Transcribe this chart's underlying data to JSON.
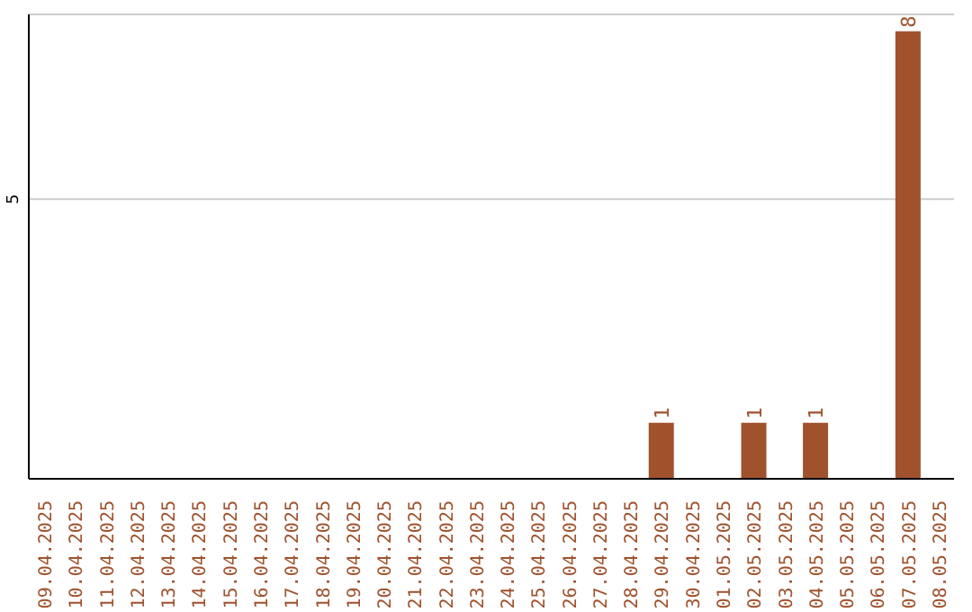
{
  "chart_data": {
    "type": "bar",
    "categories": [
      "09.04.2025",
      "10.04.2025",
      "11.04.2025",
      "12.04.2025",
      "13.04.2025",
      "14.04.2025",
      "15.04.2025",
      "16.04.2025",
      "17.04.2025",
      "18.04.2025",
      "19.04.2025",
      "20.04.2025",
      "21.04.2025",
      "22.04.2025",
      "23.04.2025",
      "24.04.2025",
      "25.04.2025",
      "26.04.2025",
      "27.04.2025",
      "28.04.2025",
      "29.04.2025",
      "30.04.2025",
      "01.05.2025",
      "02.05.2025",
      "03.05.2025",
      "04.05.2025",
      "05.05.2025",
      "06.05.2025",
      "07.05.2025",
      "08.05.2025"
    ],
    "values": [
      null,
      null,
      null,
      null,
      null,
      null,
      null,
      null,
      null,
      null,
      null,
      null,
      null,
      null,
      null,
      null,
      null,
      null,
      null,
      null,
      1,
      null,
      null,
      1,
      null,
      1,
      null,
      null,
      8,
      null
    ],
    "color": "#a0522d",
    "ylim": [
      0,
      8.3
    ],
    "yticks": [
      5
    ],
    "grid": "y",
    "data_labels": true
  }
}
